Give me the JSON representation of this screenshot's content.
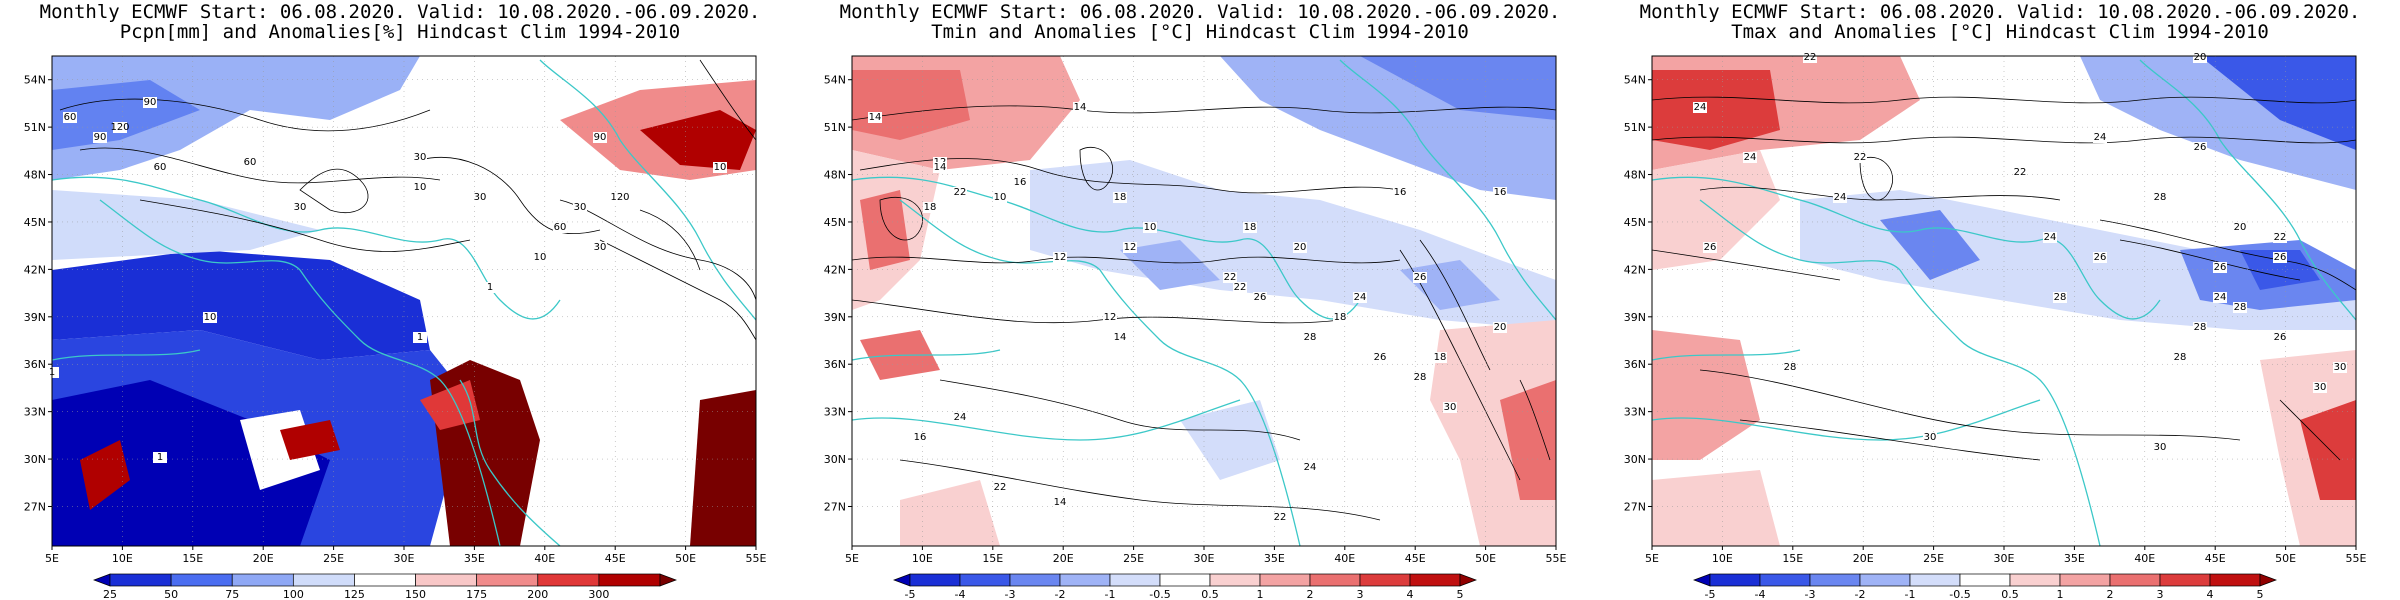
{
  "panels": [
    {
      "title_line1": "Monthly ECMWF Start: 06.08.2020. Valid: 10.08.2020.-06.09.2020.",
      "title_line2": "Pcpn[mm] and Anomalies[%] Hindcast Clim 1994-2010",
      "legend_ticks": [
        "25",
        "50",
        "75",
        "100",
        "125",
        "150",
        "175",
        "200",
        "300"
      ],
      "legend_colors": [
        "#0000b4",
        "#1a2fd6",
        "#4a6df0",
        "#8fa8f5",
        "#d0dcfa",
        "#ffffff",
        "#f8c7c7",
        "#f08b8b",
        "#e03838",
        "#b00000",
        "#780000"
      ],
      "contour_labels": [
        "60",
        "90",
        "120",
        "60",
        "30",
        "10",
        "30",
        "60",
        "120",
        "90",
        "30",
        "10",
        "1",
        "1",
        "1",
        "30",
        "90",
        "10",
        "60",
        "30",
        "10",
        "1"
      ]
    },
    {
      "title_line1": "Monthly ECMWF Start: 06.08.2020. Valid: 10.08.2020.-06.09.2020.",
      "title_line2": "Tmin and Anomalies [°C] Hindcast Clim 1994-2010",
      "legend_ticks": [
        "-5",
        "-4",
        "-3",
        "-2",
        "-1",
        "-0.5",
        "0.5",
        "1",
        "2",
        "3",
        "4",
        "5"
      ],
      "legend_colors": [
        "#0000b4",
        "#1a2fd6",
        "#3a58e8",
        "#6a86f0",
        "#9fb3f6",
        "#d3ddfa",
        "#ffffff",
        "#f9d0d0",
        "#f3a3a3",
        "#ea7070",
        "#dc3c3c",
        "#c01010",
        "#900000"
      ],
      "contour_labels": [
        "14",
        "14",
        "16",
        "12",
        "10",
        "18",
        "22",
        "14",
        "16",
        "18",
        "12",
        "18",
        "16",
        "24",
        "22",
        "26",
        "26",
        "20",
        "22",
        "12",
        "14",
        "10",
        "12",
        "18",
        "28",
        "30",
        "18",
        "20",
        "24",
        "22",
        "26",
        "28",
        "16",
        "14",
        "22",
        "24"
      ]
    },
    {
      "title_line1": "Monthly ECMWF Start: 06.08.2020. Valid: 10.08.2020.-06.09.2020.",
      "title_line2": "Tmax and Anomalies [°C] Hindcast Clim 1994-2010",
      "legend_ticks": [
        "-5",
        "-4",
        "-3",
        "-2",
        "-1",
        "-0.5",
        "0.5",
        "1",
        "2",
        "3",
        "4",
        "5"
      ],
      "legend_colors": [
        "#0000b4",
        "#1a2fd6",
        "#3a58e8",
        "#6a86f0",
        "#9fb3f6",
        "#d3ddfa",
        "#ffffff",
        "#f9d0d0",
        "#f3a3a3",
        "#ea7070",
        "#dc3c3c",
        "#c01010",
        "#900000"
      ],
      "contour_labels": [
        "24",
        "22",
        "20",
        "24",
        "22",
        "24",
        "26",
        "28",
        "26",
        "24",
        "22",
        "20",
        "24",
        "26",
        "28",
        "28",
        "30",
        "30",
        "26",
        "28",
        "24",
        "22",
        "26",
        "28",
        "30",
        "26",
        "30",
        "28"
      ]
    }
  ],
  "lat_labels": [
    "54N",
    "51N",
    "48N",
    "45N",
    "42N",
    "39N",
    "36N",
    "33N",
    "30N",
    "27N"
  ],
  "lon_labels": [
    "5E",
    "10E",
    "15E",
    "20E",
    "25E",
    "30E",
    "35E",
    "40E",
    "45E",
    "50E",
    "55E"
  ],
  "colors": {
    "coast": "#3cc8c8",
    "contour": "#000000",
    "grid": "#999999"
  }
}
